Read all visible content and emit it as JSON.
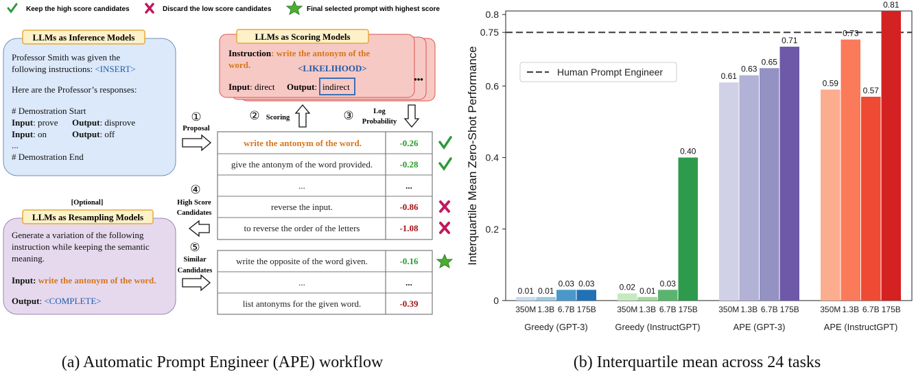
{
  "legend_top": {
    "keep": "Keep the high score candidates",
    "discard": "Discard the low score candidates",
    "final": "Final selected prompt with highest score"
  },
  "inference": {
    "title": "LLMs as Inference Models",
    "line1": "Professor Smith was given the",
    "line2_prefix": "following instructions: ",
    "line2_insert": "<INSERT>",
    "line3": "Here are the Professor’s responses:",
    "demo_start": "# Demostration Start",
    "input_label": "Input",
    "input1": ": prove",
    "output_label": "Output",
    "output1": ": disprove",
    "input2": ": on",
    "output2": ": off",
    "ellipsis": "...",
    "demo_end": "# Demostration End"
  },
  "scoring": {
    "title": "LLMs as Scoring Models",
    "instruction_label": "Instruction",
    "instruction_text1": ": write the antonym of the",
    "instruction_text2": "word.",
    "likelihood": "<LIKELIHOOD>",
    "input_label": "Input",
    "input_text": ": direct",
    "output_label": "Output",
    "output_text": "indirect",
    "dots": "•••"
  },
  "steps": {
    "proposal_num": "①",
    "proposal": "Proposal",
    "scoring_num": "②",
    "scoring": "Scoring",
    "logprob_num": "③",
    "logprob1": "Log",
    "logprob2": "Probability",
    "highscore_num": "④",
    "highscore1": "High Score",
    "highscore2": "Candidates",
    "similar_num": "⑤",
    "similar1": "Similar",
    "similar2": "Candidates"
  },
  "candidates_top": [
    {
      "text": "write the antonym of the word.",
      "score": "-0.26"
    },
    {
      "text": "give the antonym of the word provided.",
      "score": "-0.28"
    },
    {
      "text": "...",
      "score": "..."
    },
    {
      "text": "reverse the input.",
      "score": "-0.86"
    },
    {
      "text": "to reverse the order of the letters",
      "score": "-1.08"
    }
  ],
  "candidates_bottom": [
    {
      "text": "write the opposite of the word given.",
      "score": "-0.16"
    },
    {
      "text": "...",
      "score": "..."
    },
    {
      "text": "list antonyms for the given word.",
      "score": "-0.39"
    }
  ],
  "resampling": {
    "optional": "[Optional]",
    "title": "LLMs as Resampling Models",
    "line1": "Generate a variation of the following",
    "line2": "instruction while keeping the semantic",
    "line3": "meaning.",
    "input_label": "Input",
    "input_text": "write the antonym of the word.",
    "output_label": "Output",
    "output_text": "<COMPLETE>"
  },
  "captions": {
    "left": "(a) Automatic Prompt Engineer (APE) workflow",
    "right": "(b) Interquartile mean across 24 tasks"
  },
  "colors": {
    "blue_box": "#dce9fa",
    "red_box": "#f7c9c4",
    "purple_box": "#e6d9ee",
    "orange_text": "#d6761b",
    "blue_text": "#1f5aa8",
    "green_score": "#2a9b2a",
    "red_score": "#a31515"
  },
  "chart_data": {
    "type": "bar",
    "ylabel": "Interquartile Mean Zero-Shot Performance",
    "ylim": [
      0,
      0.81
    ],
    "yticks": [
      "0",
      "0.2",
      "0.4",
      "0.6",
      "0.75",
      "0.8"
    ],
    "ytick_values": [
      0,
      0.2,
      0.4,
      0.6,
      0.75,
      0.8
    ],
    "reference_line": {
      "name": "Human Prompt Engineer",
      "value": 0.75
    },
    "groups": [
      {
        "name": "Greedy (GPT-3)",
        "sizes": [
          "350M",
          "1.3B",
          "6.7B",
          "175B"
        ],
        "values": [
          0.01,
          0.01,
          0.03,
          0.03
        ],
        "labels": [
          "0.01",
          "0.01",
          "0.03",
          "0.03"
        ],
        "colors": [
          "#c6dbef",
          "#9ecae1",
          "#4a98c9",
          "#2171b5"
        ]
      },
      {
        "name": "Greedy (InstructGPT)",
        "sizes": [
          "350M",
          "1.3B",
          "6.7B",
          "175B"
        ],
        "values": [
          0.02,
          0.01,
          0.03,
          0.4
        ],
        "labels": [
          "0.02",
          "0.01",
          "0.03",
          "0.40"
        ],
        "colors": [
          "#c7e9c0",
          "#a1d99b",
          "#5bb46e",
          "#2e9a4c"
        ]
      },
      {
        "name": "APE (GPT-3)",
        "sizes": [
          "350M",
          "1.3B",
          "6.7B",
          "175B"
        ],
        "values": [
          0.61,
          0.63,
          0.65,
          0.71
        ],
        "labels": [
          "0.61",
          "0.63",
          "0.65",
          "0.71"
        ],
        "colors": [
          "#d0d1e6",
          "#b2b1d6",
          "#9491c3",
          "#6e58a8"
        ]
      },
      {
        "name": "APE (InstructGPT)",
        "sizes": [
          "350M",
          "1.3B",
          "6.7B",
          "175B"
        ],
        "values": [
          0.59,
          0.73,
          0.57,
          0.81
        ],
        "labels": [
          "0.59",
          "0.73",
          "0.57",
          "0.81"
        ],
        "colors": [
          "#fcad8e",
          "#fb7a5a",
          "#ef4a33",
          "#d42121"
        ]
      }
    ]
  }
}
